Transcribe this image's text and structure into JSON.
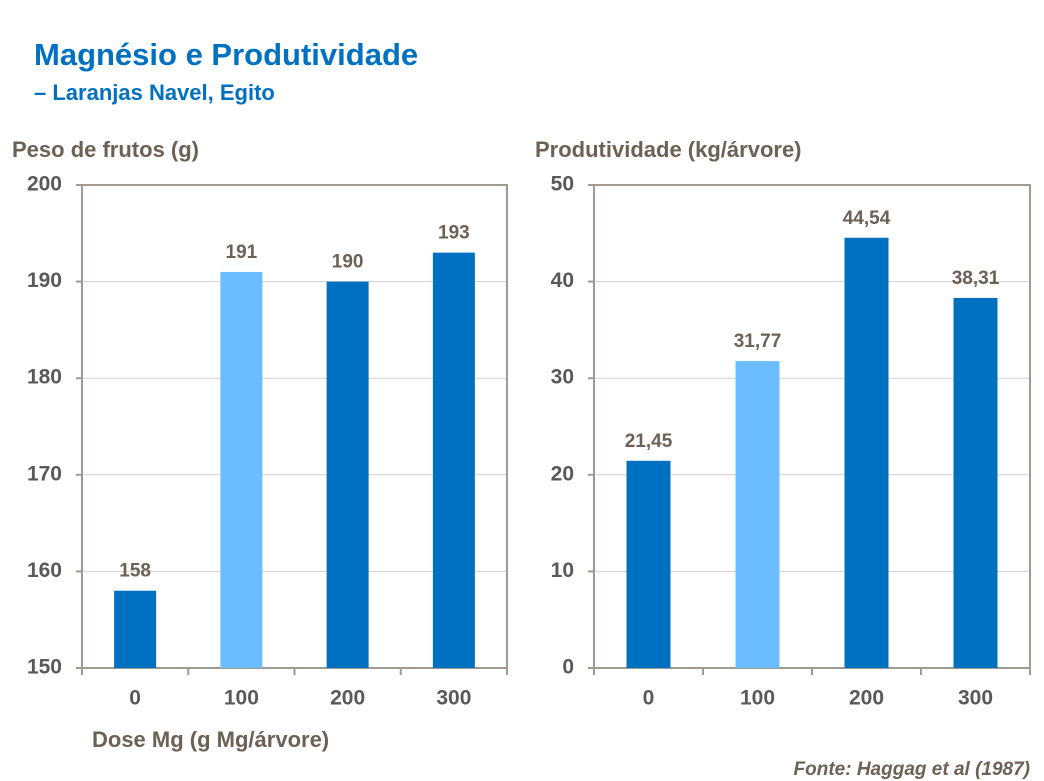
{
  "title": "Magnésio e Produtividade",
  "subtitle": "– Laranjas Navel, Egito",
  "source": "Fonte: Haggag et al (1987)",
  "chart_data": [
    {
      "type": "bar",
      "y_label": "Peso de frutos (g)",
      "x_label": "Dose Mg (g Mg/árvore)",
      "categories": [
        "0",
        "100",
        "200",
        "300"
      ],
      "values": [
        158,
        191,
        190,
        193
      ],
      "colors": [
        "#0070c0",
        "#6bbdff",
        "#0070c0",
        "#0070c0"
      ],
      "ylim": [
        150,
        200
      ],
      "yticks": [
        150,
        160,
        170,
        180,
        190,
        200
      ],
      "grid": true
    },
    {
      "type": "bar",
      "y_label": "Produtividade (kg/árvore)",
      "categories": [
        "0",
        "100",
        "200",
        "300"
      ],
      "values": [
        21.45,
        31.77,
        44.54,
        38.31
      ],
      "value_labels": [
        "21,45",
        "31,77",
        "44,54",
        "38,31"
      ],
      "colors": [
        "#0070c0",
        "#6bbdff",
        "#0070c0",
        "#0070c0"
      ],
      "ylim": [
        0,
        50
      ],
      "yticks": [
        0,
        10,
        20,
        30,
        40,
        50
      ],
      "grid": true
    }
  ]
}
